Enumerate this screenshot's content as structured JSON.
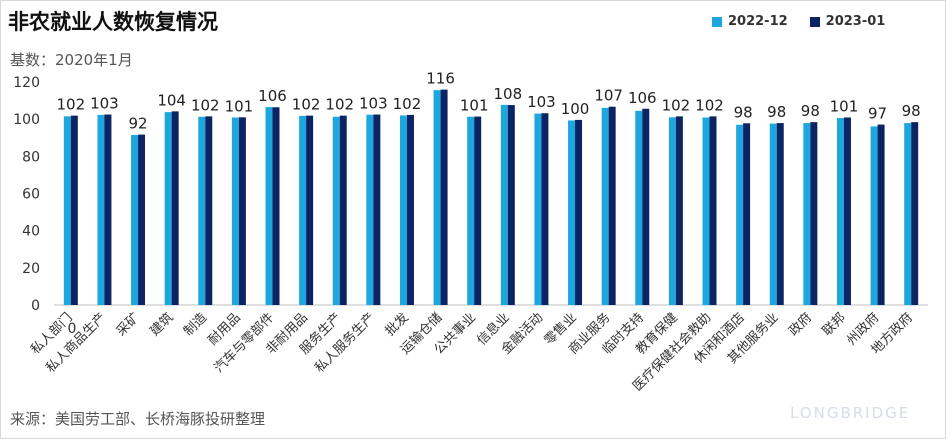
{
  "title": "非农就业人数恢复情况",
  "subtitle": "基数：2020年1月",
  "source": "来源：美国劳工部、长桥海豚投研整理",
  "brand": "LONGBRIDGE",
  "colors": {
    "series1": "#1EA7DF",
    "series2": "#0B2463"
  },
  "chart_data": {
    "type": "bar",
    "categories": [
      "私人部门",
      "私人商品生产",
      "采矿",
      "建筑",
      "制造",
      "耐用品",
      "汽车与零部件",
      "非耐用品",
      "服务生产",
      "私人服务生产",
      "批发",
      "运输仓储",
      "公共事业",
      "信息业",
      "金融活动",
      "零售业",
      "商业服务",
      "临时支持",
      "教育保健",
      "医疗保健社会救助",
      "休闲和酒店",
      "其他服务业",
      "政府",
      "联邦",
      "州政府",
      "地方政府"
    ],
    "series": [
      {
        "name": "2022-12",
        "values": [
          101.5,
          102.3,
          91.5,
          103.8,
          101.3,
          100.9,
          106.5,
          101.8,
          101.3,
          102.4,
          102.0,
          115.6,
          101.3,
          107.7,
          103.0,
          99.3,
          106.1,
          104.5,
          101.0,
          100.9,
          97.0,
          97.6,
          97.9,
          100.6,
          96.1,
          97.9
        ]
      },
      {
        "name": "2023-01",
        "values": [
          101.9,
          102.5,
          91.7,
          104.2,
          101.5,
          101.0,
          106.4,
          101.9,
          101.9,
          102.5,
          102.3,
          115.9,
          101.4,
          107.6,
          103.2,
          99.6,
          106.7,
          105.6,
          101.5,
          101.5,
          97.8,
          97.9,
          98.4,
          100.9,
          97.1,
          98.4
        ]
      }
    ],
    "data_labels": [
      "102",
      "103",
      "92",
      "104",
      "102",
      "101",
      "106",
      "102",
      "102",
      "103",
      "102",
      "116",
      "101",
      "108",
      "103",
      "100",
      "107",
      "106",
      "102",
      "102",
      "98",
      "98",
      "98",
      "101",
      "97",
      "98"
    ],
    "y_ticks": [
      0,
      20,
      40,
      60,
      80,
      100,
      120
    ],
    "x_first_label": "0",
    "ylim": [
      0,
      120
    ],
    "grid": false,
    "legend_position": "top-right"
  }
}
